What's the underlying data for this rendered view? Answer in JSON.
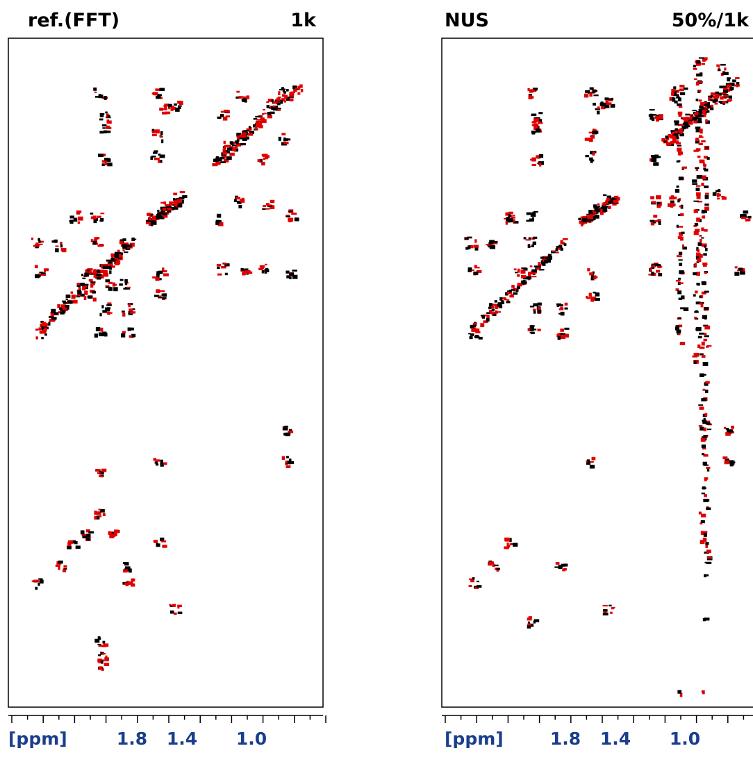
{
  "panels": [
    {
      "title": "ref.(FFT)",
      "size": "1k",
      "axis_unit": "[ppm]",
      "axis_labels": [
        "1.8",
        "1.4",
        "1.0"
      ]
    },
    {
      "title": "NUS",
      "size": "50%/1k",
      "axis_unit": "[ppm]",
      "axis_labels": [
        "1.8",
        "1.4",
        "1.0"
      ]
    }
  ]
}
